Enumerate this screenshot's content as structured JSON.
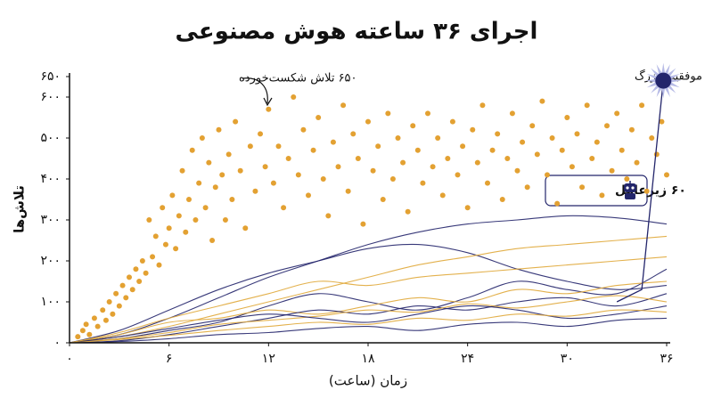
{
  "chart_data": {
    "type": "scatter-lines",
    "title": "اجرای ۳۶ ساعته هوش مصنوعی",
    "xlabel": "زمان (ساعت)",
    "ylabel": "تلاش‌ها",
    "annotations": {
      "failed": "۶۵۰ تلاش شکست‌خورده",
      "success": "موفقیت بزرگ",
      "agents": "۶۰ زیرعامل"
    },
    "xlim": [
      0,
      36
    ],
    "ylim": [
      0,
      650
    ],
    "xticks": [
      {
        "value": 0,
        "label": "۰"
      },
      {
        "value": 6,
        "label": "۶"
      },
      {
        "value": 12,
        "label": "۱۲"
      },
      {
        "value": 18,
        "label": "۱۸"
      },
      {
        "value": 24,
        "label": "۲۴"
      },
      {
        "value": 30,
        "label": "۳۰"
      },
      {
        "value": 36,
        "label": "۳۶"
      }
    ],
    "yticks": [
      {
        "value": 0,
        "label": "۰"
      },
      {
        "value": 100,
        "label": "۱۰۰"
      },
      {
        "value": 200,
        "label": "۲۰۰"
      },
      {
        "value": 300,
        "label": "۳۰۰"
      },
      {
        "value": 400,
        "label": "۴۰۰"
      },
      {
        "value": 500,
        "label": "۵۰۰"
      },
      {
        "value": 600,
        "label": "۶۰۰"
      },
      {
        "value": 650,
        "label": "۶۵۰"
      }
    ],
    "scatter": {
      "color": "#e3a132",
      "x": [
        0.5,
        0.8,
        1.0,
        1.2,
        1.5,
        1.7,
        2.0,
        2.2,
        2.4,
        2.6,
        2.8,
        3.0,
        3.2,
        3.4,
        3.6,
        3.8,
        4.0,
        4.2,
        4.4,
        4.6,
        4.8,
        5.0,
        5.2,
        5.4,
        5.6,
        5.8,
        6.0,
        6.2,
        6.4,
        6.6,
        6.8,
        7.0,
        7.2,
        7.4,
        7.6,
        7.8,
        8.0,
        8.2,
        8.4,
        8.6,
        8.8,
        9.0,
        9.2,
        9.4,
        9.6,
        9.8,
        10,
        10.3,
        10.6,
        10.9,
        11.2,
        11.5,
        11.8,
        12,
        12.3,
        12.6,
        12.9,
        13.2,
        13.5,
        13.8,
        14.1,
        14.4,
        14.7,
        15,
        15.3,
        15.6,
        15.9,
        16.2,
        16.5,
        16.8,
        17.1,
        17.4,
        17.7,
        18,
        18.3,
        18.6,
        18.9,
        19.2,
        19.5,
        19.8,
        20.1,
        20.4,
        20.7,
        21,
        21.3,
        21.6,
        21.9,
        22.2,
        22.5,
        22.8,
        23.1,
        23.4,
        23.7,
        24,
        24.3,
        24.6,
        24.9,
        25.2,
        25.5,
        25.8,
        26.1,
        26.4,
        26.7,
        27,
        27.3,
        27.6,
        27.9,
        28.2,
        28.5,
        28.8,
        29.1,
        29.4,
        29.7,
        30,
        30.3,
        30.6,
        30.9,
        31.2,
        31.5,
        31.8,
        32.1,
        32.4,
        32.7,
        33,
        33.3,
        33.6,
        33.9,
        34.2,
        34.5,
        34.8,
        35.1,
        35.4,
        35.7,
        36
      ],
      "values": [
        15,
        30,
        45,
        20,
        60,
        40,
        80,
        55,
        100,
        70,
        120,
        90,
        140,
        110,
        160,
        130,
        180,
        150,
        200,
        170,
        300,
        210,
        260,
        190,
        330,
        240,
        280,
        360,
        230,
        310,
        420,
        270,
        350,
        470,
        300,
        390,
        500,
        330,
        440,
        250,
        380,
        520,
        410,
        300,
        460,
        350,
        540,
        420,
        280,
        480,
        370,
        510,
        430,
        570,
        390,
        480,
        330,
        450,
        600,
        410,
        520,
        360,
        470,
        550,
        400,
        310,
        490,
        430,
        580,
        370,
        510,
        450,
        290,
        540,
        420,
        480,
        350,
        560,
        400,
        500,
        440,
        320,
        530,
        470,
        390,
        560,
        430,
        500,
        360,
        450,
        540,
        410,
        480,
        330,
        520,
        440,
        580,
        390,
        470,
        510,
        350,
        450,
        560,
        420,
        490,
        380,
        530,
        460,
        590,
        410,
        500,
        340,
        470,
        550,
        430,
        510,
        380,
        580,
        450,
        490,
        360,
        530,
        420,
        560,
        470,
        400,
        520,
        440,
        580,
        370,
        500,
        460,
        540,
        410
      ]
    },
    "line_x": [
      0,
      3,
      6,
      9,
      12,
      15,
      18,
      21,
      24,
      27,
      30,
      33,
      36
    ],
    "series": [
      {
        "color": "#23256b",
        "values": [
          0,
          20,
          60,
          110,
          160,
          200,
          240,
          270,
          290,
          300,
          310,
          305,
          290
        ]
      },
      {
        "color": "#23256b",
        "values": [
          0,
          30,
          80,
          130,
          170,
          200,
          230,
          240,
          220,
          180,
          150,
          130,
          140
        ]
      },
      {
        "color": "#e0a83a",
        "values": [
          0,
          15,
          40,
          70,
          100,
          130,
          160,
          190,
          210,
          230,
          240,
          250,
          260
        ]
      },
      {
        "color": "#23256b",
        "values": [
          0,
          10,
          30,
          50,
          90,
          120,
          100,
          80,
          110,
          150,
          130,
          120,
          180
        ]
      },
      {
        "color": "#e0a83a",
        "values": [
          0,
          20,
          50,
          60,
          80,
          70,
          90,
          110,
          100,
          130,
          120,
          140,
          150
        ]
      },
      {
        "color": "#23256b",
        "values": [
          0,
          5,
          20,
          40,
          60,
          80,
          70,
          90,
          80,
          100,
          110,
          90,
          120
        ]
      },
      {
        "color": "#e0a83a",
        "values": [
          0,
          10,
          25,
          45,
          55,
          65,
          80,
          75,
          95,
          85,
          100,
          115,
          100
        ]
      },
      {
        "color": "#23256b",
        "values": [
          0,
          15,
          35,
          55,
          70,
          60,
          50,
          70,
          90,
          80,
          60,
          70,
          90
        ]
      },
      {
        "color": "#e0a83a",
        "values": [
          0,
          8,
          18,
          30,
          40,
          50,
          45,
          60,
          55,
          70,
          65,
          80,
          75
        ]
      },
      {
        "color": "#23256b",
        "values": [
          0,
          3,
          10,
          20,
          25,
          35,
          40,
          30,
          45,
          50,
          40,
          55,
          60
        ]
      },
      {
        "color": "#e0a83a",
        "values": [
          0,
          25,
          60,
          90,
          120,
          150,
          140,
          160,
          170,
          180,
          190,
          200,
          210
        ]
      }
    ],
    "breakthrough": {
      "color": "#23256b",
      "x": [
        33,
        34.5,
        35.8
      ],
      "values": [
        100,
        130,
        640
      ]
    }
  }
}
